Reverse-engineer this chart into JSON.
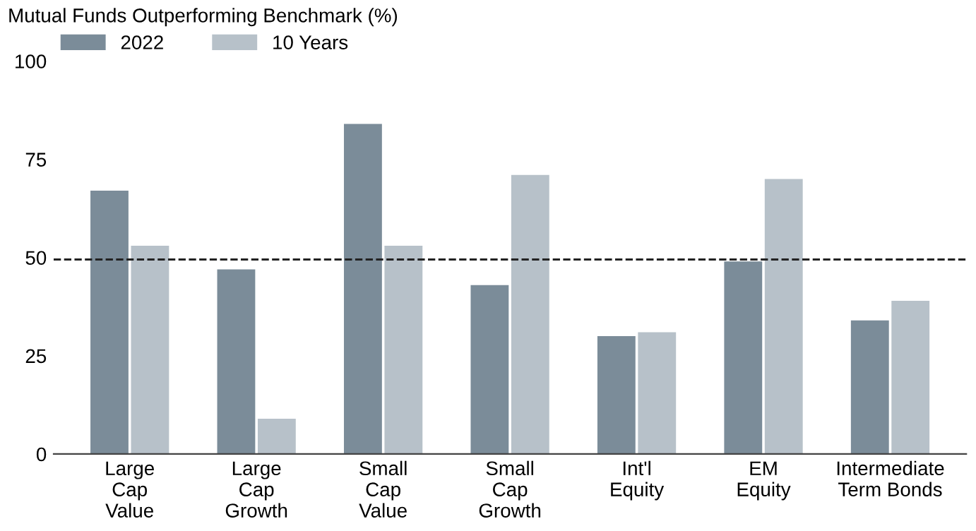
{
  "chart_data": {
    "type": "bar",
    "title": "Mutual Funds Outperforming Benchmark (%)",
    "categories": [
      "Large\nCap\nValue",
      "Large\nCap\nGrowth",
      "Small\nCap\nValue",
      "Small\nCap\nGrowth",
      "Int'l\nEquity",
      "EM\nEquity",
      "Intermediate\nTerm Bonds"
    ],
    "series": [
      {
        "name": "2022",
        "color": "#7b8c99",
        "values": [
          67,
          47,
          84,
          43,
          30,
          49,
          34
        ]
      },
      {
        "name": "10 Years",
        "color": "#b7c1c9",
        "values": [
          53,
          9,
          53,
          71,
          31,
          70,
          39
        ]
      }
    ],
    "ylim": [
      0,
      100
    ],
    "yticks": [
      0,
      25,
      50,
      75,
      100
    ],
    "grid": false,
    "legend": "top left",
    "ref_lines": [
      {
        "axis": "y",
        "value": 49.5,
        "color": "#222222",
        "line_style": "dashed"
      }
    ]
  }
}
